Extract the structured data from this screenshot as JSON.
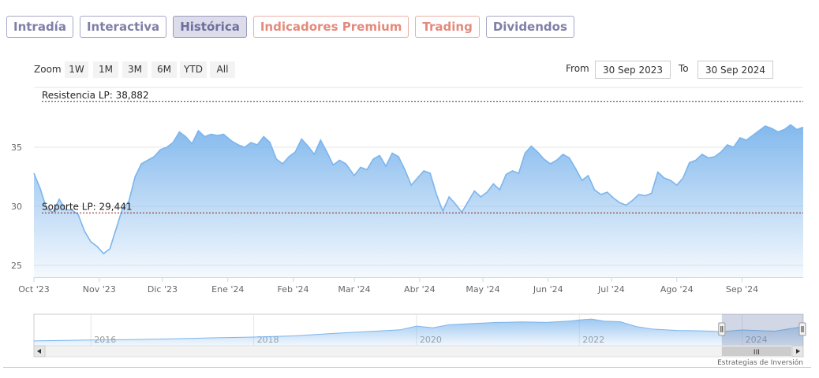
{
  "tabs": [
    {
      "label": "Intradía",
      "style": "purple"
    },
    {
      "label": "Interactiva",
      "style": "purple"
    },
    {
      "label": "Histórica",
      "style": "active"
    },
    {
      "label": "Indicadores Premium",
      "style": "salmon"
    },
    {
      "label": "Trading",
      "style": "salmon"
    },
    {
      "label": "Dividendos",
      "style": "purple"
    }
  ],
  "zoom": {
    "label": "Zoom",
    "buttons": [
      "1W",
      "1M",
      "3M",
      "6M",
      "YTD",
      "All"
    ]
  },
  "range": {
    "from_label": "From",
    "from_value": "30 Sep 2023",
    "to_label": "To",
    "to_value": "30 Sep 2024"
  },
  "colors": {
    "line": "#7cb5ec",
    "fill_top": "#7cb5ec",
    "tab_purple": "#7f7fa8",
    "tab_salmon": "#e38a7c"
  },
  "chart_data": {
    "type": "area",
    "x_start": "2023-10-01",
    "x_end": "2024-09-30",
    "ylim": [
      24,
      40
    ],
    "yticks": [
      25,
      30,
      35
    ],
    "ytick_labels": [
      "25",
      "30",
      "35"
    ],
    "grid": true,
    "xtick_labels": [
      {
        "date": "2023-10-01",
        "label": "Oct '23"
      },
      {
        "date": "2023-11-01",
        "label": "Nov '23"
      },
      {
        "date": "2023-12-01",
        "label": "Dic '23"
      },
      {
        "date": "2024-01-01",
        "label": "Ene '24"
      },
      {
        "date": "2024-02-01",
        "label": "Feb '24"
      },
      {
        "date": "2024-03-01",
        "label": "Mar '24"
      },
      {
        "date": "2024-04-01",
        "label": "Abr '24"
      },
      {
        "date": "2024-05-01",
        "label": "May '24"
      },
      {
        "date": "2024-06-01",
        "label": "Jun '24"
      },
      {
        "date": "2024-07-01",
        "label": "Jul '24"
      },
      {
        "date": "2024-08-01",
        "label": "Ago '24"
      },
      {
        "date": "2024-09-01",
        "label": "Sep '24"
      }
    ],
    "plot_lines": [
      {
        "label": "Resistencia LP: 38,882",
        "value": 38.882,
        "color": "#333333"
      },
      {
        "label": "Soporte LP: 29,441",
        "value": 29.441,
        "color": "#8b1a1a"
      }
    ],
    "series": [
      {
        "points": [
          [
            "2023-10-01",
            32.8
          ],
          [
            "2023-10-04",
            31.5
          ],
          [
            "2023-10-07",
            29.8
          ],
          [
            "2023-10-10",
            29.5
          ],
          [
            "2023-10-13",
            30.6
          ],
          [
            "2023-10-16",
            29.7
          ],
          [
            "2023-10-19",
            29.7
          ],
          [
            "2023-10-22",
            29.3
          ],
          [
            "2023-10-25",
            27.9
          ],
          [
            "2023-10-28",
            27.0
          ],
          [
            "2023-10-31",
            26.6
          ],
          [
            "2023-11-03",
            26.0
          ],
          [
            "2023-11-06",
            26.4
          ],
          [
            "2023-11-09",
            28.1
          ],
          [
            "2023-11-12",
            29.8
          ],
          [
            "2023-11-15",
            30.4
          ],
          [
            "2023-11-18",
            32.5
          ],
          [
            "2023-11-21",
            33.6
          ],
          [
            "2023-11-24",
            33.9
          ],
          [
            "2023-11-27",
            34.2
          ],
          [
            "2023-11-30",
            34.8
          ],
          [
            "2023-12-03",
            35.0
          ],
          [
            "2023-12-06",
            35.4
          ],
          [
            "2023-12-09",
            36.3
          ],
          [
            "2023-12-12",
            35.9
          ],
          [
            "2023-12-15",
            35.3
          ],
          [
            "2023-12-18",
            36.4
          ],
          [
            "2023-12-21",
            35.9
          ],
          [
            "2023-12-24",
            36.1
          ],
          [
            "2023-12-27",
            36.0
          ],
          [
            "2023-12-30",
            36.1
          ],
          [
            "2024-01-03",
            35.5
          ],
          [
            "2024-01-06",
            35.2
          ],
          [
            "2024-01-09",
            35.0
          ],
          [
            "2024-01-12",
            35.4
          ],
          [
            "2024-01-15",
            35.2
          ],
          [
            "2024-01-18",
            35.9
          ],
          [
            "2024-01-21",
            35.4
          ],
          [
            "2024-01-24",
            34.0
          ],
          [
            "2024-01-27",
            33.6
          ],
          [
            "2024-01-30",
            34.2
          ],
          [
            "2024-02-02",
            34.6
          ],
          [
            "2024-02-05",
            35.7
          ],
          [
            "2024-02-08",
            35.1
          ],
          [
            "2024-02-11",
            34.4
          ],
          [
            "2024-02-14",
            35.6
          ],
          [
            "2024-02-17",
            34.6
          ],
          [
            "2024-02-20",
            33.5
          ],
          [
            "2024-02-23",
            33.9
          ],
          [
            "2024-02-26",
            33.6
          ],
          [
            "2024-03-01",
            32.6
          ],
          [
            "2024-03-04",
            33.3
          ],
          [
            "2024-03-07",
            33.1
          ],
          [
            "2024-03-10",
            34.0
          ],
          [
            "2024-03-13",
            34.3
          ],
          [
            "2024-03-16",
            33.4
          ],
          [
            "2024-03-19",
            34.5
          ],
          [
            "2024-03-22",
            34.2
          ],
          [
            "2024-03-25",
            33.1
          ],
          [
            "2024-03-28",
            31.8
          ],
          [
            "2024-03-31",
            32.4
          ],
          [
            "2024-04-03",
            33.0
          ],
          [
            "2024-04-06",
            32.8
          ],
          [
            "2024-04-09",
            31.0
          ],
          [
            "2024-04-12",
            29.6
          ],
          [
            "2024-04-15",
            30.8
          ],
          [
            "2024-04-18",
            30.2
          ],
          [
            "2024-04-21",
            29.5
          ],
          [
            "2024-04-24",
            30.4
          ],
          [
            "2024-04-27",
            31.3
          ],
          [
            "2024-04-30",
            30.8
          ],
          [
            "2024-05-03",
            31.2
          ],
          [
            "2024-05-06",
            31.9
          ],
          [
            "2024-05-09",
            31.4
          ],
          [
            "2024-05-12",
            32.7
          ],
          [
            "2024-05-15",
            33.0
          ],
          [
            "2024-05-18",
            32.8
          ],
          [
            "2024-05-21",
            34.5
          ],
          [
            "2024-05-24",
            35.1
          ],
          [
            "2024-05-27",
            34.6
          ],
          [
            "2024-05-30",
            34.0
          ],
          [
            "2024-06-02",
            33.6
          ],
          [
            "2024-06-05",
            33.9
          ],
          [
            "2024-06-08",
            34.4
          ],
          [
            "2024-06-11",
            34.1
          ],
          [
            "2024-06-14",
            33.2
          ],
          [
            "2024-06-17",
            32.2
          ],
          [
            "2024-06-20",
            32.6
          ],
          [
            "2024-06-23",
            31.4
          ],
          [
            "2024-06-26",
            31.0
          ],
          [
            "2024-06-29",
            31.2
          ],
          [
            "2024-07-02",
            30.7
          ],
          [
            "2024-07-05",
            30.3
          ],
          [
            "2024-07-08",
            30.1
          ],
          [
            "2024-07-11",
            30.5
          ],
          [
            "2024-07-14",
            31.0
          ],
          [
            "2024-07-17",
            30.9
          ],
          [
            "2024-07-20",
            31.1
          ],
          [
            "2024-07-23",
            32.9
          ],
          [
            "2024-07-26",
            32.4
          ],
          [
            "2024-07-29",
            32.2
          ],
          [
            "2024-08-01",
            31.8
          ],
          [
            "2024-08-04",
            32.4
          ],
          [
            "2024-08-07",
            33.7
          ],
          [
            "2024-08-10",
            33.9
          ],
          [
            "2024-08-13",
            34.4
          ],
          [
            "2024-08-16",
            34.1
          ],
          [
            "2024-08-19",
            34.2
          ],
          [
            "2024-08-22",
            34.6
          ],
          [
            "2024-08-25",
            35.2
          ],
          [
            "2024-08-28",
            35.0
          ],
          [
            "2024-08-31",
            35.8
          ],
          [
            "2024-09-03",
            35.6
          ],
          [
            "2024-09-06",
            36.0
          ],
          [
            "2024-09-09",
            36.4
          ],
          [
            "2024-09-12",
            36.8
          ],
          [
            "2024-09-15",
            36.6
          ],
          [
            "2024-09-18",
            36.3
          ],
          [
            "2024-09-21",
            36.5
          ],
          [
            "2024-09-24",
            36.9
          ],
          [
            "2024-09-27",
            36.5
          ],
          [
            "2024-09-30",
            36.7
          ]
        ]
      }
    ]
  },
  "navigator": {
    "year_labels": [
      "2016",
      "2018",
      "2020",
      "2022",
      "2024"
    ],
    "history": [
      [
        2015.3,
        26.0
      ],
      [
        2016.0,
        26.5
      ],
      [
        2016.5,
        26.8
      ],
      [
        2017.0,
        27.2
      ],
      [
        2017.5,
        27.8
      ],
      [
        2018.0,
        28.3
      ],
      [
        2018.5,
        29.0
      ],
      [
        2019.0,
        30.5
      ],
      [
        2019.5,
        31.8
      ],
      [
        2019.8,
        32.6
      ],
      [
        2020.0,
        34.8
      ],
      [
        2020.2,
        33.8
      ],
      [
        2020.4,
        35.6
      ],
      [
        2020.7,
        36.4
      ],
      [
        2021.0,
        37.0
      ],
      [
        2021.3,
        37.3
      ],
      [
        2021.6,
        37.0
      ],
      [
        2021.9,
        37.9
      ],
      [
        2022.0,
        38.5
      ],
      [
        2022.15,
        39.0
      ],
      [
        2022.3,
        37.8
      ],
      [
        2022.5,
        37.4
      ],
      [
        2022.7,
        34.5
      ],
      [
        2022.9,
        33.0
      ],
      [
        2023.2,
        32.2
      ],
      [
        2023.5,
        32.0
      ],
      [
        2023.75,
        31.5
      ],
      [
        2024.0,
        32.5
      ],
      [
        2024.4,
        31.8
      ],
      [
        2024.75,
        34.5
      ]
    ],
    "selection": {
      "from": 2023.75,
      "to": 2024.75
    },
    "scroll_grip": "III"
  },
  "credits": "Estrategias de Inversión"
}
